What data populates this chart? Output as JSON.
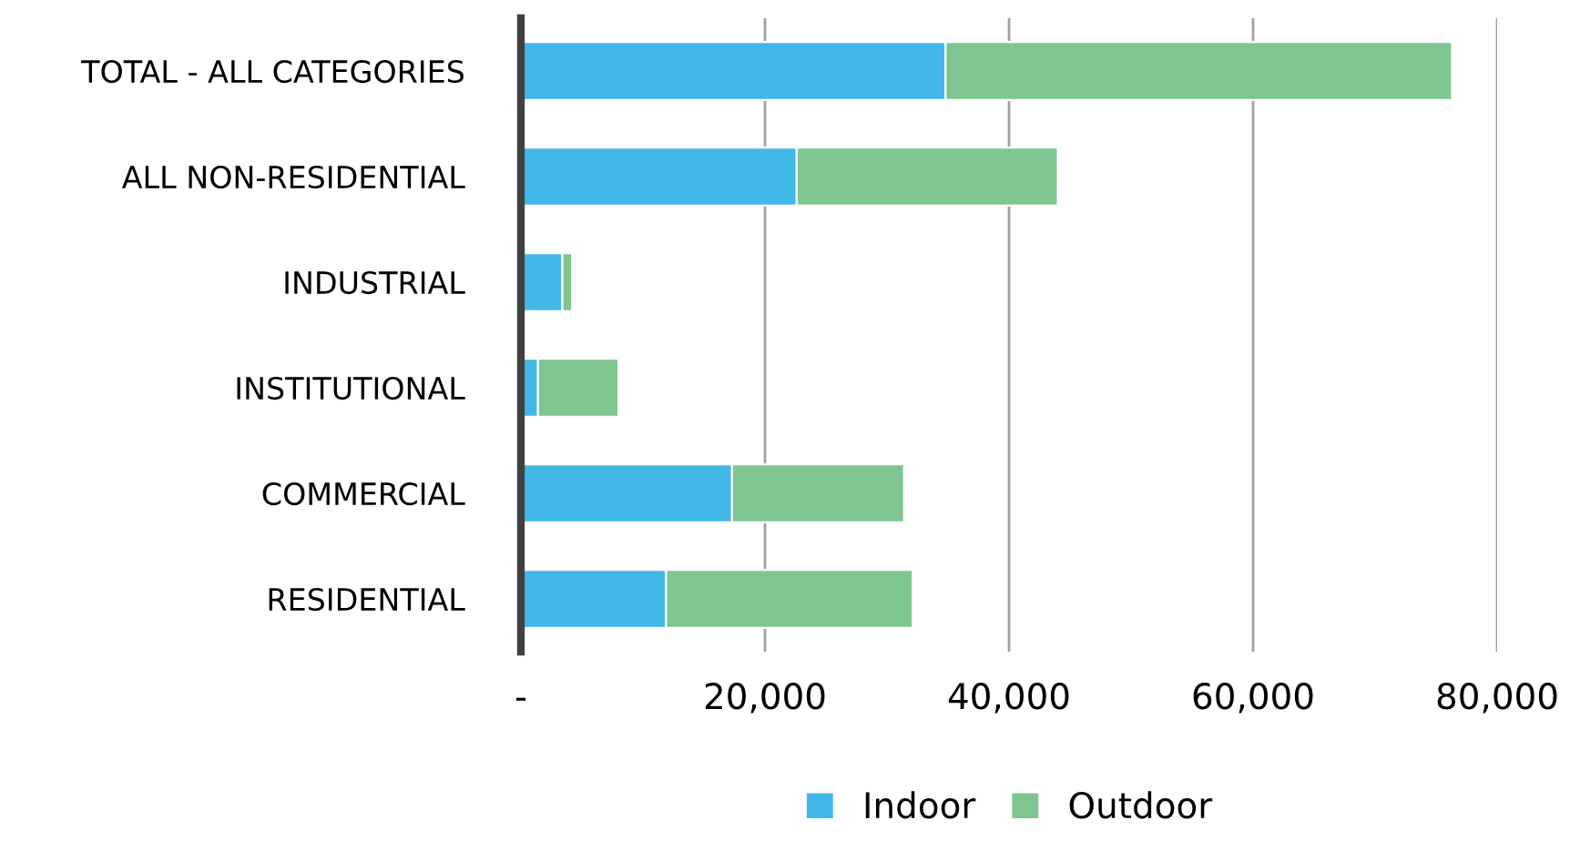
{
  "chart_data": {
    "type": "bar",
    "orientation": "horizontal",
    "stacked": true,
    "categories": [
      "TOTAL - ALL CATEGORIES",
      "ALL NON-RESIDENTIAL",
      "INDUSTRIAL",
      "INSTITUTIONAL",
      "COMMERCIAL",
      "RESIDENTIAL"
    ],
    "series": [
      {
        "name": "Indoor",
        "color": "#41b8e8",
        "values": [
          34800,
          22600,
          3400,
          1400,
          17300,
          11900
        ]
      },
      {
        "name": "Outdoor",
        "color": "#7fc592",
        "values": [
          41500,
          21400,
          800,
          6600,
          14100,
          20200
        ]
      }
    ],
    "xlim": [
      0,
      80000
    ],
    "xticks": [
      {
        "value": 0,
        "label": "-"
      },
      {
        "value": 20000,
        "label": "20,000"
      },
      {
        "value": 40000,
        "label": "40,000"
      },
      {
        "value": 60000,
        "label": "60,000"
      },
      {
        "value": 80000,
        "label": "80,000"
      }
    ],
    "grid": "x",
    "legend": "bottom"
  }
}
